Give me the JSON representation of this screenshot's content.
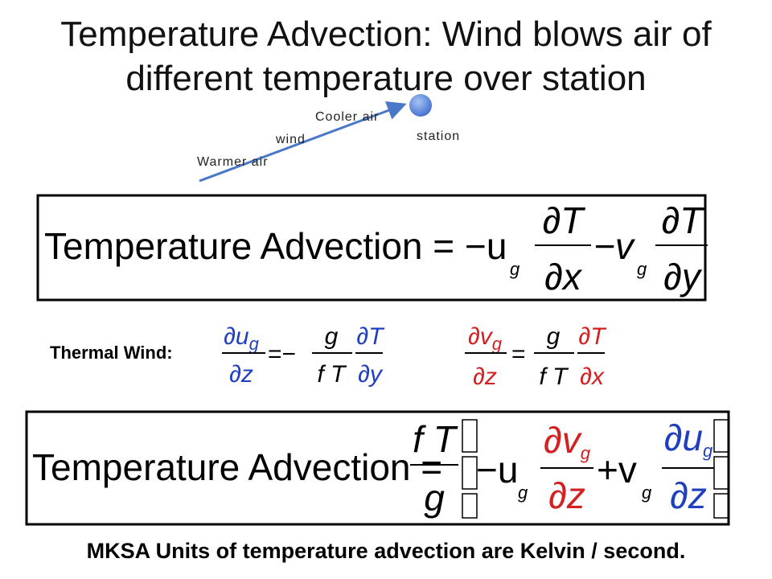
{
  "title": [
    "Temperature Advection: Wind blows air of",
    "different temperature over station"
  ],
  "diagram": {
    "cooler": "Cooler air",
    "wind": "wind",
    "warmer": "Warmer air",
    "station": "station"
  },
  "equation1": {
    "lhs": "Temperature Advection =",
    "term1": {
      "coef": "−u",
      "sub": "g",
      "num": "∂T",
      "den": "∂x"
    },
    "term2": {
      "coef": "−v",
      "sub": "g",
      "num": "∂T",
      "den": "∂y"
    }
  },
  "thermal_wind": {
    "label": "Thermal Wind:",
    "eq1": {
      "num": "∂u",
      "num_sub": "g",
      "den": "∂z",
      "eq": "=−",
      "g": "g",
      "fT": "f T",
      "num2": "∂T",
      "den2": "∂y"
    },
    "eq2": {
      "num": "∂v",
      "num_sub": "g",
      "den": "∂z",
      "eq": "=",
      "g": "g",
      "fT": "f T",
      "num2": "∂T",
      "den2": "∂x"
    }
  },
  "equation2": {
    "lhs": "Temperature Advection =",
    "fT": "f T",
    "g": "g",
    "term1": {
      "coef": "−u",
      "sub": "g",
      "num": "∂v",
      "num_sub": "g",
      "den": "∂z"
    },
    "term2": {
      "coef": "+v",
      "sub": "g",
      "num": "∂u",
      "num_sub": "g",
      "den": "∂z"
    }
  },
  "footer": "MKSA Units of temperature advection are Kelvin / second."
}
